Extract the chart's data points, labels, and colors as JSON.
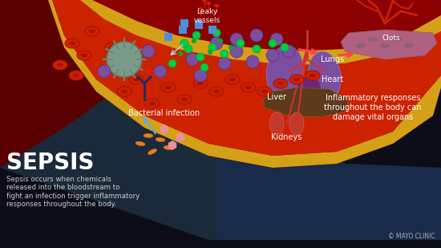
{
  "bg_color_top": "#1a0a0a",
  "bg_color_bottom": "#0a0a2a",
  "title": "SEPSIS",
  "subtitle": "Sepsis occurs when chemicals\nreleased into the bloodstream to\nfight an infection trigger inflammatory\nresponses throughout the body.",
  "label_bacterial": "Bacterial infection",
  "label_lungs": "Lungs",
  "label_heart": "Heart",
  "label_liver": "Liver",
  "label_kidneys": "Kidneys",
  "label_leaky": "Leaky\nvessels",
  "label_clots": "Clots",
  "label_inflammatory": "Inflammatory responses\nthroughout the body can\ndamage vital organs",
  "label_mayo": "© MAYO CLINIC",
  "vessel_color": "#c0392b",
  "vessel_wall_color": "#e8b84b",
  "blood_color": "#e74c3c",
  "rbc_color": "#c0392b",
  "platelet_color": "#8e44ad",
  "wbc_color": "#7f8c8d",
  "bacteria_color": "#e67e22",
  "organ_bg": "#1a3a5c",
  "lungs_color": "#9b59b6",
  "heart_color": "#8e44ad",
  "liver_color": "#6d4c2a",
  "kidney_color": "#c0392b",
  "text_color": "#ffffff",
  "arrow_color": "#5dade2"
}
